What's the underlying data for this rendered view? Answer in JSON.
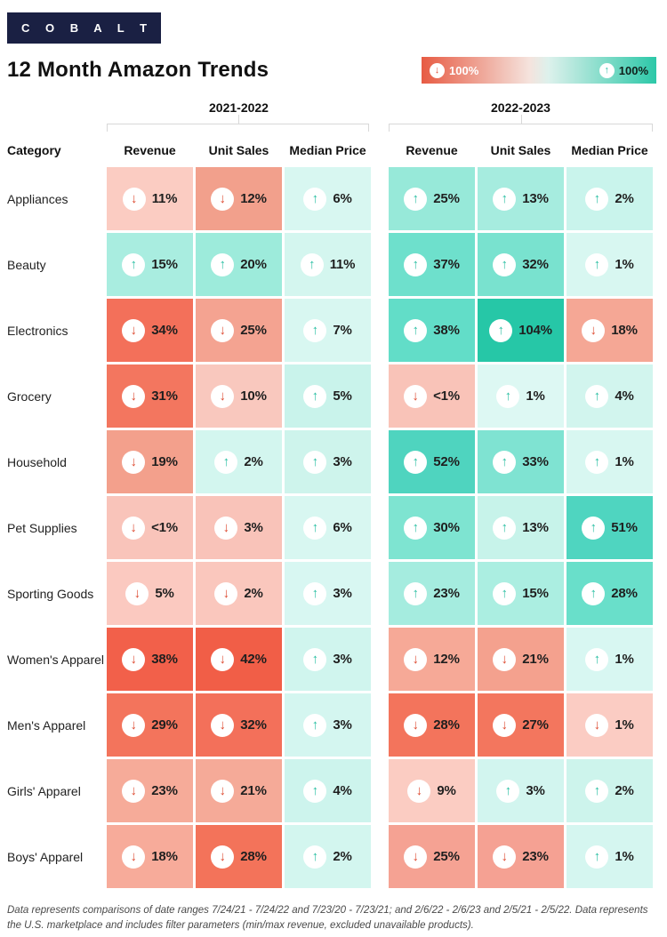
{
  "brand": {
    "logo_text": "C O B A L T"
  },
  "title": "12 Month Amazon Trends",
  "legend": {
    "down_label": "100%",
    "up_label": "100%",
    "down_arrow": "↓",
    "up_arrow": "↑",
    "negative_color": "#e75b43",
    "positive_color": "#2cc8a8"
  },
  "table": {
    "category_header": "Category",
    "groups": [
      {
        "label": "2021-2022",
        "columns": [
          "Revenue",
          "Unit Sales",
          "Median Price"
        ]
      },
      {
        "label": "2022-2023",
        "columns": [
          "Revenue",
          "Unit Sales",
          "Median Price"
        ]
      }
    ],
    "rows": [
      {
        "category": "Appliances",
        "cells": [
          {
            "dir": "down",
            "value": "11%",
            "bg": "#fbccc2"
          },
          {
            "dir": "down",
            "value": "12%",
            "bg": "#f2a08c"
          },
          {
            "dir": "up",
            "value": "6%",
            "bg": "#d8f7f1"
          },
          {
            "dir": "up",
            "value": "25%",
            "bg": "#97e9d9"
          },
          {
            "dir": "up",
            "value": "13%",
            "bg": "#a6ecdf"
          },
          {
            "dir": "up",
            "value": "2%",
            "bg": "#c9f4ec"
          }
        ]
      },
      {
        "category": "Beauty",
        "cells": [
          {
            "dir": "up",
            "value": "15%",
            "bg": "#a9ede0"
          },
          {
            "dir": "up",
            "value": "20%",
            "bg": "#9debdb"
          },
          {
            "dir": "up",
            "value": "11%",
            "bg": "#d4f6ef"
          },
          {
            "dir": "up",
            "value": "37%",
            "bg": "#6ee0cc"
          },
          {
            "dir": "up",
            "value": "32%",
            "bg": "#79e2cf"
          },
          {
            "dir": "up",
            "value": "1%",
            "bg": "#d8f7f1"
          }
        ]
      },
      {
        "category": "Electronics",
        "cells": [
          {
            "dir": "down",
            "value": "34%",
            "bg": "#f3705a"
          },
          {
            "dir": "down",
            "value": "25%",
            "bg": "#f4a391"
          },
          {
            "dir": "up",
            "value": "7%",
            "bg": "#d8f7f1"
          },
          {
            "dir": "up",
            "value": "38%",
            "bg": "#62ddc8"
          },
          {
            "dir": "up",
            "value": "104%",
            "bg": "#26c7a7"
          },
          {
            "dir": "down",
            "value": "18%",
            "bg": "#f5a795"
          }
        ]
      },
      {
        "category": "Grocery",
        "cells": [
          {
            "dir": "down",
            "value": "31%",
            "bg": "#f3765f"
          },
          {
            "dir": "down",
            "value": "10%",
            "bg": "#f9c8be"
          },
          {
            "dir": "up",
            "value": "5%",
            "bg": "#c9f3eb"
          },
          {
            "dir": "down",
            "value": "<1%",
            "bg": "#f9c3b8"
          },
          {
            "dir": "up",
            "value": "1%",
            "bg": "#ddf8f3"
          },
          {
            "dir": "up",
            "value": "4%",
            "bg": "#d2f5ee"
          }
        ]
      },
      {
        "category": "Household",
        "cells": [
          {
            "dir": "down",
            "value": "19%",
            "bg": "#f3a08c"
          },
          {
            "dir": "up",
            "value": "2%",
            "bg": "#d3f6ef"
          },
          {
            "dir": "up",
            "value": "3%",
            "bg": "#cef4ec"
          },
          {
            "dir": "up",
            "value": "52%",
            "bg": "#4fd4bf"
          },
          {
            "dir": "up",
            "value": "33%",
            "bg": "#7fe3d2"
          },
          {
            "dir": "up",
            "value": "1%",
            "bg": "#d8f7f1"
          }
        ]
      },
      {
        "category": "Pet Supplies",
        "cells": [
          {
            "dir": "down",
            "value": "<1%",
            "bg": "#f9c4ba"
          },
          {
            "dir": "down",
            "value": "3%",
            "bg": "#f9c3b9"
          },
          {
            "dir": "up",
            "value": "6%",
            "bg": "#d8f7f1"
          },
          {
            "dir": "up",
            "value": "30%",
            "bg": "#7ee4d1"
          },
          {
            "dir": "up",
            "value": "13%",
            "bg": "#c7f3ea"
          },
          {
            "dir": "up",
            "value": "51%",
            "bg": "#4fd5c0"
          }
        ]
      },
      {
        "category": "Sporting Goods",
        "cells": [
          {
            "dir": "down",
            "value": "5%",
            "bg": "#fbc9c0"
          },
          {
            "dir": "down",
            "value": "2%",
            "bg": "#fac7bd"
          },
          {
            "dir": "up",
            "value": "3%",
            "bg": "#d8f7f2"
          },
          {
            "dir": "up",
            "value": "23%",
            "bg": "#a5ecdf"
          },
          {
            "dir": "up",
            "value": "15%",
            "bg": "#abeee1"
          },
          {
            "dir": "up",
            "value": "28%",
            "bg": "#69dfca"
          }
        ]
      },
      {
        "category": "Women's Apparel",
        "cells": [
          {
            "dir": "down",
            "value": "38%",
            "bg": "#f2604a"
          },
          {
            "dir": "down",
            "value": "42%",
            "bg": "#f15e47"
          },
          {
            "dir": "up",
            "value": "3%",
            "bg": "#d0f5ee"
          },
          {
            "dir": "down",
            "value": "12%",
            "bg": "#f6a997"
          },
          {
            "dir": "down",
            "value": "21%",
            "bg": "#f4a18e"
          },
          {
            "dir": "up",
            "value": "1%",
            "bg": "#d8f7f2"
          }
        ]
      },
      {
        "category": "Men's Apparel",
        "cells": [
          {
            "dir": "down",
            "value": "29%",
            "bg": "#f3745c"
          },
          {
            "dir": "down",
            "value": "32%",
            "bg": "#f3705a"
          },
          {
            "dir": "up",
            "value": "3%",
            "bg": "#d4f6f0"
          },
          {
            "dir": "down",
            "value": "28%",
            "bg": "#f3745c"
          },
          {
            "dir": "down",
            "value": "27%",
            "bg": "#f3765e"
          },
          {
            "dir": "down",
            "value": "1%",
            "bg": "#fbccc3"
          }
        ]
      },
      {
        "category": "Girls' Apparel",
        "cells": [
          {
            "dir": "down",
            "value": "23%",
            "bg": "#f6ab99"
          },
          {
            "dir": "down",
            "value": "21%",
            "bg": "#f5aa98"
          },
          {
            "dir": "up",
            "value": "4%",
            "bg": "#cdf4ed"
          },
          {
            "dir": "down",
            "value": "9%",
            "bg": "#fbccc2"
          },
          {
            "dir": "up",
            "value": "3%",
            "bg": "#d2f5ef"
          },
          {
            "dir": "up",
            "value": "2%",
            "bg": "#cdf4ec"
          }
        ]
      },
      {
        "category": "Boys' Apparel",
        "cells": [
          {
            "dir": "down",
            "value": "18%",
            "bg": "#f7ab9a"
          },
          {
            "dir": "down",
            "value": "28%",
            "bg": "#f3735a"
          },
          {
            "dir": "up",
            "value": "2%",
            "bg": "#d3f6ef"
          },
          {
            "dir": "down",
            "value": "25%",
            "bg": "#f5a293"
          },
          {
            "dir": "down",
            "value": "23%",
            "bg": "#f5a193"
          },
          {
            "dir": "up",
            "value": "1%",
            "bg": "#d5f6f0"
          }
        ]
      }
    ]
  },
  "footer": "Data represents comparisons of date ranges 7/24/21 - 7/24/22 and 7/23/20 - 7/23/21; and 2/6/22 - 2/6/23 and 2/5/21 - 2/5/22. Data represents the U.S. marketplace and includes filter parameters (min/max revenue, excluded unavailable products).",
  "chart_data": {
    "type": "heatmap",
    "title": "12 Month Amazon Trends",
    "row_categories": [
      "Appliances",
      "Beauty",
      "Electronics",
      "Grocery",
      "Household",
      "Pet Supplies",
      "Sporting Goods",
      "Women's Apparel",
      "Men's Apparel",
      "Girls' Apparel",
      "Boys' Apparel"
    ],
    "columns": [
      "2021-2022 Revenue",
      "2021-2022 Unit Sales",
      "2021-2022 Median Price",
      "2022-2023 Revenue",
      "2022-2023 Unit Sales",
      "2022-2023 Median Price"
    ],
    "values_percent": [
      [
        -11,
        -12,
        6,
        25,
        13,
        2
      ],
      [
        15,
        20,
        11,
        37,
        32,
        1
      ],
      [
        -34,
        -25,
        7,
        38,
        104,
        -18
      ],
      [
        -31,
        -10,
        5,
        -0.5,
        1,
        4
      ],
      [
        -19,
        2,
        3,
        52,
        33,
        1
      ],
      [
        -0.5,
        -3,
        6,
        30,
        13,
        51
      ],
      [
        -5,
        -2,
        3,
        23,
        15,
        28
      ],
      [
        -38,
        -42,
        3,
        -12,
        -21,
        1
      ],
      [
        -29,
        -32,
        3,
        -28,
        -27,
        -1
      ],
      [
        -23,
        -21,
        4,
        -9,
        3,
        2
      ],
      [
        -18,
        -28,
        2,
        -25,
        -23,
        1
      ]
    ],
    "note": "Values shown as <1% encoded as ±0.5; negative = decline (red), positive = growth (teal)",
    "color_scale": {
      "min": -100,
      "max": 100,
      "min_color": "#e75b43",
      "mid_color": "#ffffff",
      "max_color": "#2cc8a8"
    },
    "legend_position": "top-right"
  }
}
